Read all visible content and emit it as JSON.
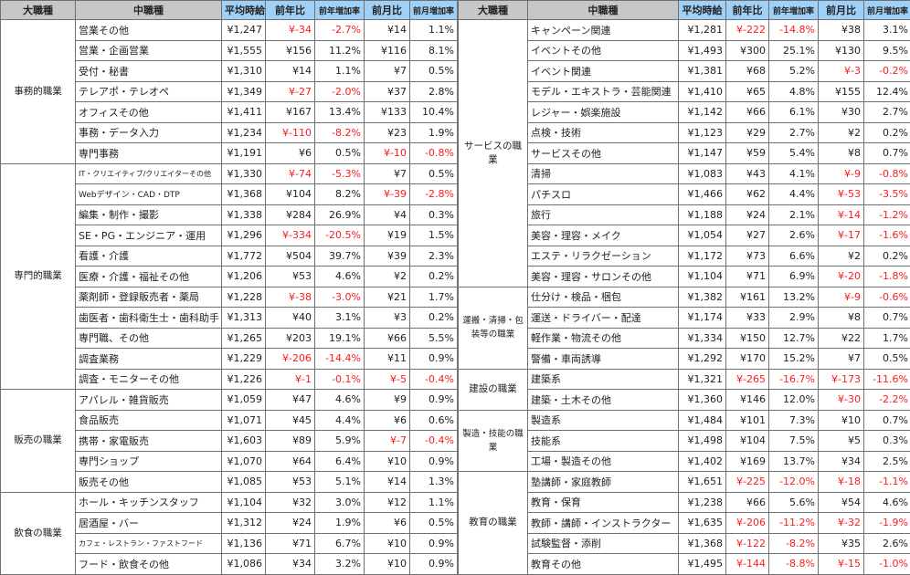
{
  "headers": [
    "大職種",
    "中職種",
    "平均時給",
    "前年比",
    "前年増加率",
    "前月比",
    "前月増加率"
  ],
  "colors": {
    "header_category": "#c9c9c9",
    "header_numeric": "#9fd0f7",
    "negative": "#ff1a1a"
  },
  "left": [
    {
      "category": "事務的職業",
      "rows": [
        [
          "営業その他",
          "¥1,247",
          "¥-34",
          "-2.7%",
          "¥14",
          "1.1%"
        ],
        [
          "営業・企画営業",
          "¥1,555",
          "¥156",
          "11.2%",
          "¥116",
          "8.1%"
        ],
        [
          "受付・秘書",
          "¥1,310",
          "¥14",
          "1.1%",
          "¥7",
          "0.5%"
        ],
        [
          "テレアポ・テレオペ",
          "¥1,349",
          "¥-27",
          "-2.0%",
          "¥37",
          "2.8%"
        ],
        [
          "オフィスその他",
          "¥1,411",
          "¥167",
          "13.4%",
          "¥133",
          "10.4%"
        ],
        [
          "事務・データ入力",
          "¥1,234",
          "¥-110",
          "-8.2%",
          "¥23",
          "1.9%"
        ],
        [
          "専門事務",
          "¥1,191",
          "¥6",
          "0.5%",
          "¥-10",
          "-0.8%"
        ]
      ]
    },
    {
      "category": "専門的職業",
      "rows": [
        [
          "IT・クリエイティブ/クリエイターその他",
          "¥1,330",
          "¥-74",
          "-5.3%",
          "¥7",
          "0.5%"
        ],
        [
          "Webデザイン・CAD・DTP",
          "¥1,368",
          "¥104",
          "8.2%",
          "¥-39",
          "-2.8%"
        ],
        [
          "編集・制作・撮影",
          "¥1,338",
          "¥284",
          "26.9%",
          "¥4",
          "0.3%"
        ],
        [
          "SE・PG・エンジニア・運用",
          "¥1,296",
          "¥-334",
          "-20.5%",
          "¥19",
          "1.5%"
        ],
        [
          "看護・介護",
          "¥1,772",
          "¥504",
          "39.7%",
          "¥39",
          "2.3%"
        ],
        [
          "医療・介護・福祉その他",
          "¥1,206",
          "¥53",
          "4.6%",
          "¥2",
          "0.2%"
        ],
        [
          "薬剤師・登録販売者・薬局",
          "¥1,228",
          "¥-38",
          "-3.0%",
          "¥21",
          "1.7%"
        ],
        [
          "歯医者・歯科衛生士・歯科助手",
          "¥1,313",
          "¥40",
          "3.1%",
          "¥3",
          "0.2%"
        ],
        [
          "専門職、その他",
          "¥1,265",
          "¥203",
          "19.1%",
          "¥66",
          "5.5%"
        ],
        [
          "調査業務",
          "¥1,229",
          "¥-206",
          "-14.4%",
          "¥11",
          "0.9%"
        ],
        [
          "調査・モニターその他",
          "¥1,226",
          "¥-1",
          "-0.1%",
          "¥-5",
          "-0.4%"
        ]
      ]
    },
    {
      "category": "販売の職業",
      "rows": [
        [
          "アパレル・雑貨販売",
          "¥1,059",
          "¥47",
          "4.6%",
          "¥9",
          "0.9%"
        ],
        [
          "食品販売",
          "¥1,071",
          "¥45",
          "4.4%",
          "¥6",
          "0.6%"
        ],
        [
          "携帯・家電販売",
          "¥1,603",
          "¥89",
          "5.9%",
          "¥-7",
          "-0.4%"
        ],
        [
          "専門ショップ",
          "¥1,070",
          "¥64",
          "6.4%",
          "¥10",
          "0.9%"
        ],
        [
          "販売その他",
          "¥1,085",
          "¥53",
          "5.1%",
          "¥14",
          "1.3%"
        ]
      ]
    },
    {
      "category": "飲食の職業",
      "rows": [
        [
          "ホール・キッチンスタッフ",
          "¥1,104",
          "¥32",
          "3.0%",
          "¥12",
          "1.1%"
        ],
        [
          "居酒屋・バー",
          "¥1,312",
          "¥24",
          "1.9%",
          "¥6",
          "0.5%"
        ],
        [
          "カフェ・レストラン・ファストフード",
          "¥1,136",
          "¥71",
          "6.7%",
          "¥10",
          "0.9%"
        ],
        [
          "フード・飲食その他",
          "¥1,086",
          "¥34",
          "3.2%",
          "¥10",
          "0.9%"
        ]
      ]
    }
  ],
  "right": [
    {
      "category": "サービスの職業",
      "rows": [
        [
          "キャンペーン関連",
          "¥1,281",
          "¥-222",
          "-14.8%",
          "¥38",
          "3.1%"
        ],
        [
          "イベントその他",
          "¥1,493",
          "¥300",
          "25.1%",
          "¥130",
          "9.5%"
        ],
        [
          "イベント関連",
          "¥1,381",
          "¥68",
          "5.2%",
          "¥-3",
          "-0.2%"
        ],
        [
          "モデル・エキストラ・芸能関連",
          "¥1,410",
          "¥65",
          "4.8%",
          "¥155",
          "12.4%"
        ],
        [
          "レジャー・娯楽施設",
          "¥1,142",
          "¥66",
          "6.1%",
          "¥30",
          "2.7%"
        ],
        [
          "点検・技術",
          "¥1,123",
          "¥29",
          "2.7%",
          "¥2",
          "0.2%"
        ],
        [
          "サービスその他",
          "¥1,147",
          "¥59",
          "5.4%",
          "¥8",
          "0.7%"
        ],
        [
          "清掃",
          "¥1,083",
          "¥43",
          "4.1%",
          "¥-9",
          "-0.8%"
        ],
        [
          "パチスロ",
          "¥1,466",
          "¥62",
          "4.4%",
          "¥-53",
          "-3.5%"
        ],
        [
          "旅行",
          "¥1,188",
          "¥24",
          "2.1%",
          "¥-14",
          "-1.2%"
        ],
        [
          "美容・理容・メイク",
          "¥1,054",
          "¥27",
          "2.6%",
          "¥-17",
          "-1.6%"
        ],
        [
          "エステ・リラクゼーション",
          "¥1,172",
          "¥73",
          "6.6%",
          "¥2",
          "0.2%"
        ],
        [
          "美容・理容・サロンその他",
          "¥1,104",
          "¥71",
          "6.9%",
          "¥-20",
          "-1.8%"
        ]
      ]
    },
    {
      "category": "運搬・清掃・包装等の職業",
      "rows": [
        [
          "仕分け・検品・梱包",
          "¥1,382",
          "¥161",
          "13.2%",
          "¥-9",
          "-0.6%"
        ],
        [
          "運送・ドライバー・配達",
          "¥1,174",
          "¥33",
          "2.9%",
          "¥8",
          "0.7%"
        ],
        [
          "軽作業・物流その他",
          "¥1,334",
          "¥150",
          "12.7%",
          "¥22",
          "1.7%"
        ],
        [
          "警備・車両誘導",
          "¥1,292",
          "¥170",
          "15.2%",
          "¥7",
          "0.5%"
        ]
      ]
    },
    {
      "category": "建設の職業",
      "rows": [
        [
          "建築系",
          "¥1,321",
          "¥-265",
          "-16.7%",
          "¥-173",
          "-11.6%"
        ],
        [
          "建築・土木その他",
          "¥1,360",
          "¥146",
          "12.0%",
          "¥-30",
          "-2.2%"
        ]
      ]
    },
    {
      "category": "製造・技能の職業",
      "rows": [
        [
          "製造系",
          "¥1,484",
          "¥101",
          "7.3%",
          "¥10",
          "0.7%"
        ],
        [
          "技能系",
          "¥1,498",
          "¥104",
          "7.5%",
          "¥5",
          "0.3%"
        ],
        [
          "工場・製造その他",
          "¥1,402",
          "¥169",
          "13.7%",
          "¥34",
          "2.5%"
        ]
      ]
    },
    {
      "category": "教育の職業",
      "rows": [
        [
          "塾講師・家庭教師",
          "¥1,651",
          "¥-225",
          "-12.0%",
          "¥-18",
          "-1.1%"
        ],
        [
          "教育・保育",
          "¥1,238",
          "¥66",
          "5.6%",
          "¥54",
          "4.6%"
        ],
        [
          "教師・講師・インストラクター",
          "¥1,635",
          "¥-206",
          "-11.2%",
          "¥-32",
          "-1.9%"
        ],
        [
          "試験監督・添削",
          "¥1,368",
          "¥-122",
          "-8.2%",
          "¥35",
          "2.6%"
        ],
        [
          "教育その他",
          "¥1,495",
          "¥-144",
          "-8.8%",
          "¥-15",
          "-1.0%"
        ]
      ]
    }
  ]
}
